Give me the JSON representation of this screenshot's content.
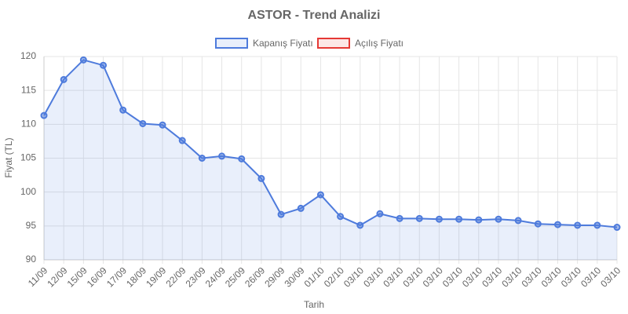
{
  "chart_data": {
    "type": "line",
    "title": "ASTOR - Trend Analizi",
    "x_label": "Tarih",
    "y_label": "Fiyat (TL)",
    "categories": [
      "11/09",
      "12/09",
      "15/09",
      "16/09",
      "17/09",
      "18/09",
      "19/09",
      "22/09",
      "23/09",
      "24/09",
      "25/09",
      "26/09",
      "29/09",
      "30/09",
      "01/10",
      "02/10",
      "03/10",
      "03/10",
      "03/10",
      "03/10",
      "03/10",
      "03/10",
      "03/10",
      "03/10",
      "03/10",
      "03/10",
      "03/10",
      "03/10",
      "03/10",
      "03/10"
    ],
    "series": [
      {
        "name": "Kapanış Fiyatı",
        "color": "#4e7bdc",
        "fill": true,
        "values": [
          111.3,
          116.6,
          119.5,
          118.7,
          112.1,
          110.1,
          109.9,
          107.6,
          105.0,
          105.3,
          104.9,
          102.0,
          96.7,
          97.6,
          99.6,
          96.4,
          95.1,
          96.8,
          96.1,
          96.1,
          96.0,
          96.0,
          95.9,
          96.0,
          95.8,
          95.3,
          95.2,
          95.1,
          95.1,
          94.8
        ]
      },
      {
        "name": "Açılış Fiyatı",
        "color": "#e53935",
        "fill": false,
        "values": [
          null,
          null,
          null,
          null,
          null,
          null,
          null,
          null,
          null,
          null,
          null,
          null,
          null,
          null,
          null,
          null,
          null,
          null,
          null,
          null,
          null,
          null,
          null,
          null,
          null,
          null,
          null,
          null,
          null,
          null
        ]
      }
    ],
    "ylim": [
      90,
      120
    ],
    "yticks": [
      90,
      95,
      100,
      105,
      110,
      115,
      120
    ],
    "grid": true,
    "legend": "top"
  }
}
